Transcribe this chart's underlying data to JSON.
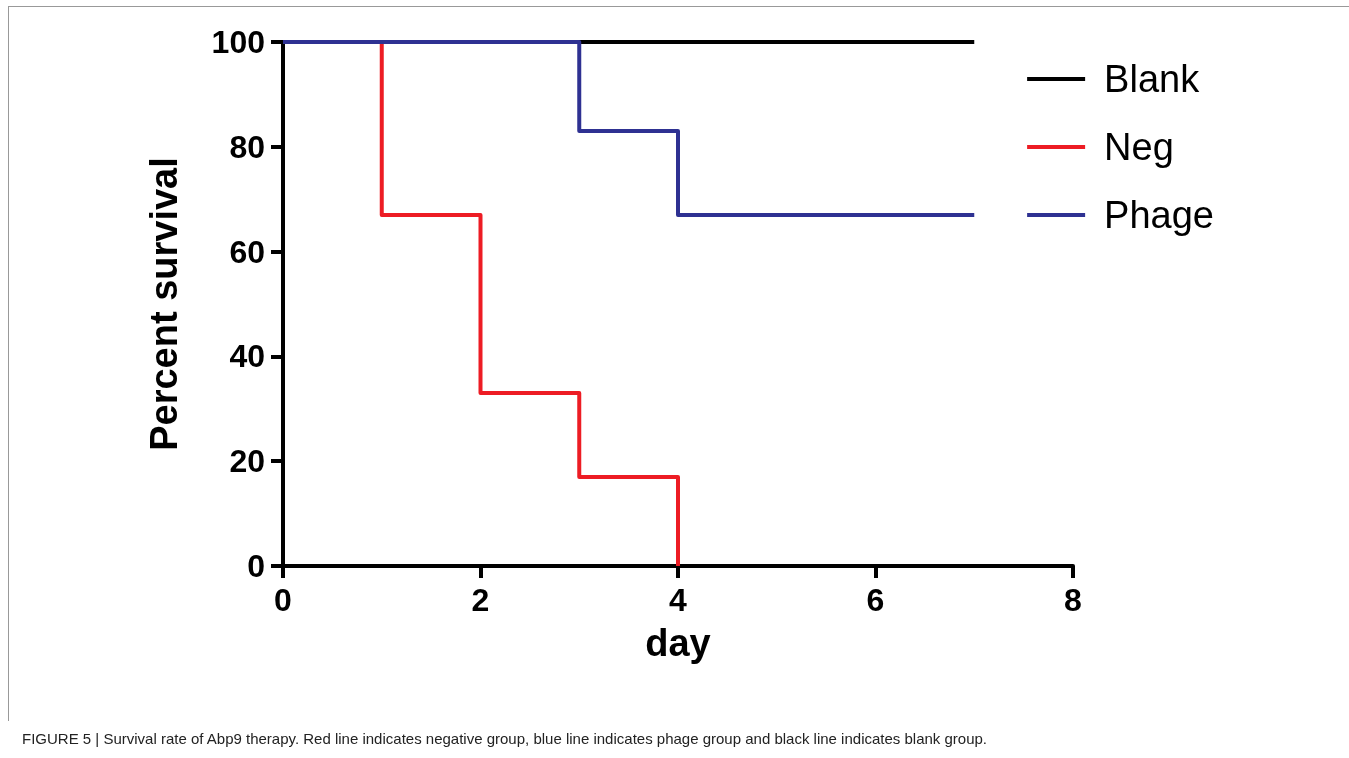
{
  "chart_data": {
    "type": "step",
    "xlabel": "day",
    "ylabel": "Percent survival",
    "xlim": [
      0,
      8
    ],
    "xticks": [
      0,
      2,
      4,
      6,
      8
    ],
    "ylim": [
      0,
      100
    ],
    "yticks": [
      0,
      20,
      40,
      60,
      80,
      100
    ],
    "grid": false,
    "legend": "top right",
    "line_style": "solid",
    "series": [
      {
        "name": "Blank",
        "color": "#000000",
        "x": [
          0,
          7
        ],
        "values": [
          100,
          100
        ]
      },
      {
        "name": "Neg",
        "color": "#ed1c24",
        "x": [
          0,
          1,
          2,
          3,
          4
        ],
        "values": [
          100,
          67,
          33,
          17,
          0
        ]
      },
      {
        "name": "Phage",
        "color": "#2e3192",
        "x": [
          0,
          3,
          4,
          7
        ],
        "values": [
          100,
          83,
          67,
          67
        ]
      }
    ],
    "annotations": [
      "FIGURE 5 | Survival rate of Abp9 therapy. Red line indicates negative group, blue line indicates phage group and black line indicates blank group."
    ]
  }
}
